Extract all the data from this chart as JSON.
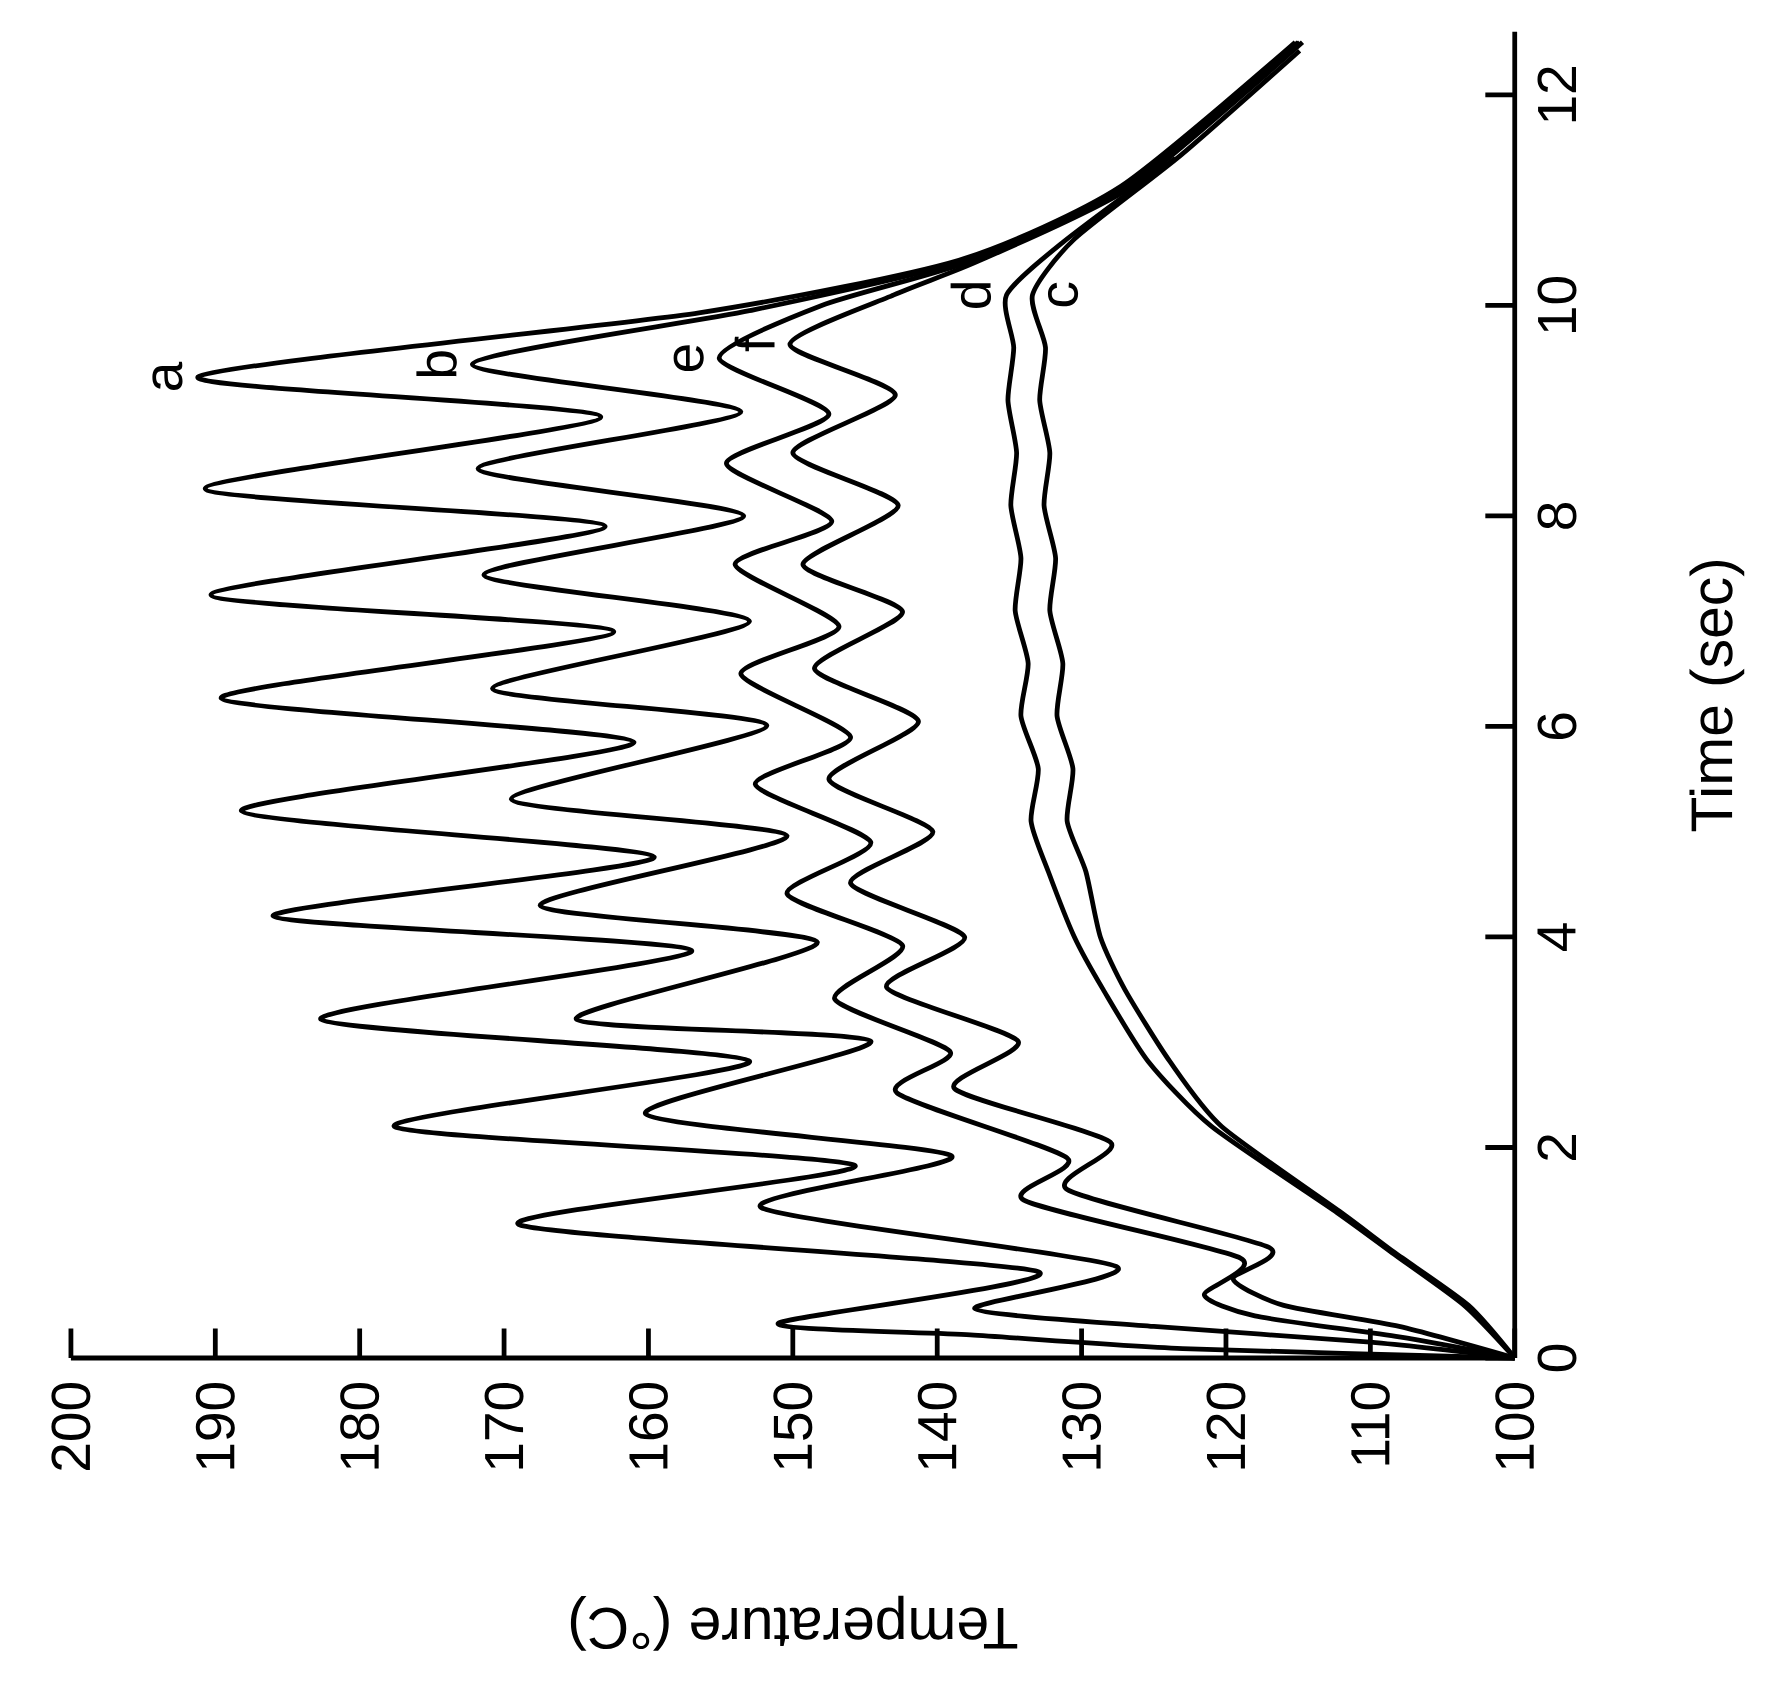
{
  "chart_data": {
    "type": "line",
    "xlabel": "Temperature (°C)",
    "ylabel": "Time (sec)",
    "xlim": [
      200,
      100
    ],
    "ylim": [
      0,
      12.6
    ],
    "xticks": [
      100,
      110,
      120,
      130,
      140,
      150,
      160,
      170,
      180,
      190,
      200
    ],
    "yticks": [
      0,
      2,
      4,
      6,
      8,
      10,
      12
    ],
    "marker": "none",
    "series": [
      {
        "name": "a",
        "color": "#000000",
        "values": [
          0,
          0.09,
          0.22,
          0.33,
          0.82,
          1.27,
          1.83,
          2.2,
          2.82,
          3.22,
          3.87,
          4.2,
          4.76,
          5.2,
          5.85,
          6.27,
          6.9,
          7.25,
          7.9,
          8.26,
          8.94,
          9.32,
          9.93,
          10.43,
          11.13,
          12.5
        ],
        "x": [
          100,
          123,
          137.7,
          151,
          133,
          169,
          145.7,
          177.6,
          153,
          182.7,
          157,
          186,
          159.6,
          188.2,
          161,
          189.6,
          162.4,
          190.3,
          163,
          190.7,
          163.3,
          191.2,
          156.5,
          138.5,
          127.3,
          115.2
        ]
      },
      {
        "name": "b",
        "color": "#000000",
        "values": [
          0,
          0.15,
          0.3,
          0.47,
          0.87,
          1.43,
          1.92,
          2.32,
          3.01,
          3.22,
          3.95,
          4.3,
          4.96,
          5.31,
          6.01,
          6.36,
          7.0,
          7.44,
          8.0,
          8.45,
          8.99,
          9.44,
          9.95,
          10.43,
          11.13,
          12.5
        ],
        "x": [
          100,
          110,
          125,
          137.4,
          127.6,
          152.2,
          139,
          160.2,
          144.6,
          165,
          148.3,
          167.5,
          150.4,
          169.5,
          151.8,
          170.8,
          153,
          171.4,
          153.4,
          171.8,
          153.6,
          172.2,
          153,
          138,
          127,
          115
        ]
      },
      {
        "name": "e",
        "color": "#000000",
        "values": [
          0,
          0.2,
          0.4,
          0.6,
          0.95,
          1.5,
          1.9,
          2.52,
          2.91,
          3.41,
          3.92,
          4.41,
          4.9,
          5.45,
          5.9,
          6.5,
          6.95,
          7.54,
          7.95,
          8.5,
          8.97,
          9.5,
          10.0,
          10.43,
          11.13,
          12.5
        ],
        "x": [
          100,
          108,
          118,
          121.5,
          119,
          134,
          131,
          142.8,
          139.1,
          147.1,
          142.4,
          150.4,
          144.6,
          152.6,
          146,
          153.6,
          146.8,
          154,
          147.3,
          154.6,
          147.5,
          155.1,
          148,
          137.5,
          126.9,
          114.9
        ]
      },
      {
        "name": "f",
        "color": "#000000",
        "values": [
          0,
          0.3,
          0.5,
          0.75,
          1.05,
          1.6,
          2.05,
          2.56,
          3.01,
          3.52,
          4.0,
          4.51,
          5.0,
          5.5,
          6.05,
          6.55,
          7.09,
          7.54,
          8.1,
          8.6,
          9.15,
          9.63,
          10.1,
          10.43,
          11.13,
          12.5
        ],
        "x": [
          100,
          108,
          116,
          119.5,
          117,
          131,
          128,
          138.8,
          134.4,
          143.5,
          138.1,
          146,
          140.3,
          147.5,
          141.3,
          148.5,
          142.4,
          149.3,
          142.7,
          150,
          142.9,
          150.2,
          143,
          137,
          126.5,
          114.7
        ]
      },
      {
        "name": "d",
        "color": "#000000",
        "values": [
          0,
          0.5,
          1.0,
          1.38,
          2.2,
          2.82,
          3.5,
          4.0,
          4.62,
          5.1,
          5.6,
          6.1,
          6.6,
          7.1,
          7.6,
          8.1,
          8.6,
          9.1,
          9.6,
          10.1,
          10.6,
          11.4
        ],
        "x": [
          100,
          103.5,
          108.5,
          112.3,
          121,
          125.4,
          128.5,
          130.5,
          132.3,
          133.5,
          133,
          134.2,
          133.7,
          134.6,
          134.2,
          134.9,
          134.5,
          135.1,
          134.7,
          135.2,
          131.3,
          123.5
        ]
      },
      {
        "name": "c",
        "color": "#000000",
        "values": [
          0,
          0.5,
          1.0,
          1.38,
          2.2,
          2.82,
          3.5,
          4.0,
          4.62,
          5.1,
          5.6,
          6.1,
          6.6,
          7.1,
          7.6,
          8.1,
          8.6,
          9.1,
          9.6,
          10.1,
          10.63,
          11.43,
          12.42
        ],
        "x": [
          100,
          103.2,
          108.3,
          112,
          120.3,
          123.9,
          127,
          128.7,
          129.7,
          131,
          130.6,
          131.7,
          131.3,
          132.2,
          131.8,
          132.6,
          132.2,
          132.9,
          132.5,
          133.4,
          130.5,
          123.1,
          114.9
        ]
      }
    ]
  }
}
